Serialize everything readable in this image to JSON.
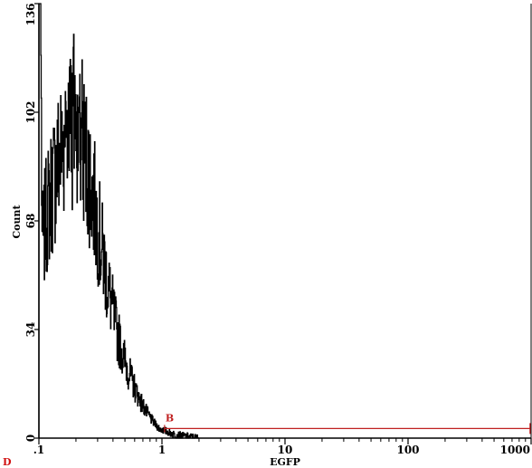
{
  "chart_data": {
    "type": "histogram",
    "xlabel": "EGFP",
    "ylabel": "Count",
    "x_scale": "log",
    "xlim": [
      0.1,
      1000
    ],
    "ylim": [
      0,
      136
    ],
    "x_ticks": [
      {
        "value": 0.1,
        "label": ".1"
      },
      {
        "value": 1,
        "label": "1"
      },
      {
        "value": 10,
        "label": "10"
      },
      {
        "value": 100,
        "label": "100"
      },
      {
        "value": 1000,
        "label": "1000"
      }
    ],
    "y_ticks": [
      {
        "value": 0,
        "label": "0"
      },
      {
        "value": 34,
        "label": "34"
      },
      {
        "value": 68,
        "label": "68"
      },
      {
        "value": 102,
        "label": "102"
      },
      {
        "value": 136,
        "label": "136"
      }
    ],
    "line_color": "#000000",
    "gate": {
      "label": "B",
      "x_start": 1.05,
      "x_end": 1000,
      "y": 3,
      "color": "#c02020"
    },
    "panel_label": "D",
    "panel_label_color": "#d01010",
    "envelope": [
      {
        "x": 0.1,
        "y": 136
      },
      {
        "x": 0.103,
        "y": 136
      },
      {
        "x": 0.106,
        "y": 60
      },
      {
        "x": 0.115,
        "y": 70
      },
      {
        "x": 0.13,
        "y": 80
      },
      {
        "x": 0.15,
        "y": 90
      },
      {
        "x": 0.17,
        "y": 96
      },
      {
        "x": 0.19,
        "y": 100
      },
      {
        "x": 0.21,
        "y": 98
      },
      {
        "x": 0.24,
        "y": 88
      },
      {
        "x": 0.28,
        "y": 74
      },
      {
        "x": 0.32,
        "y": 60
      },
      {
        "x": 0.37,
        "y": 46
      },
      {
        "x": 0.43,
        "y": 33
      },
      {
        "x": 0.5,
        "y": 24
      },
      {
        "x": 0.58,
        "y": 17
      },
      {
        "x": 0.66,
        "y": 12
      },
      {
        "x": 0.75,
        "y": 8
      },
      {
        "x": 0.85,
        "y": 5
      },
      {
        "x": 0.95,
        "y": 3
      },
      {
        "x": 1.1,
        "y": 2
      },
      {
        "x": 1.3,
        "y": 1
      },
      {
        "x": 1.6,
        "y": 0.5
      },
      {
        "x": 2.0,
        "y": 0
      }
    ]
  }
}
